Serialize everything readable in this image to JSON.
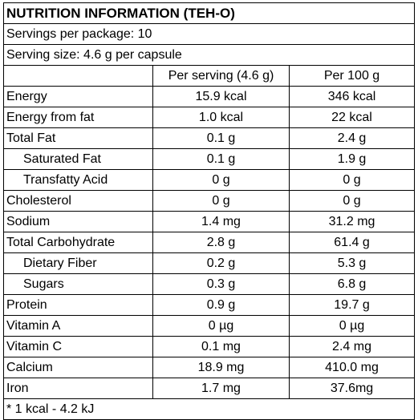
{
  "title": "NUTRITION INFORMATION (TEH-O)",
  "servings_per_package": "Servings per package: 10",
  "serving_size": "Serving size: 4.6 g per capsule",
  "headers": {
    "blank": "",
    "per_serving": "Per serving (4.6 g)",
    "per_100g": "Per 100 g"
  },
  "rows": [
    {
      "label": "Energy",
      "per_serving": "15.9 kcal",
      "per_100g": "346 kcal",
      "indent": false
    },
    {
      "label": "Energy from fat",
      "per_serving": "1.0 kcal",
      "per_100g": "22 kcal",
      "indent": false
    },
    {
      "label": "Total Fat",
      "per_serving": "0.1 g",
      "per_100g": "2.4 g",
      "indent": false
    },
    {
      "label": "Saturated Fat",
      "per_serving": "0.1 g",
      "per_100g": "1.9 g",
      "indent": true
    },
    {
      "label": "Transfatty Acid",
      "per_serving": "0 g",
      "per_100g": "0 g",
      "indent": true
    },
    {
      "label": "Cholesterol",
      "per_serving": "0 g",
      "per_100g": "0 g",
      "indent": false
    },
    {
      "label": "Sodium",
      "per_serving": "1.4 mg",
      "per_100g": "31.2 mg",
      "indent": false
    },
    {
      "label": "Total Carbohydrate",
      "per_serving": "2.8 g",
      "per_100g": "61.4 g",
      "indent": false
    },
    {
      "label": "Dietary Fiber",
      "per_serving": "0.2 g",
      "per_100g": "5.3 g",
      "indent": true
    },
    {
      "label": "Sugars",
      "per_serving": "0.3 g",
      "per_100g": "6.8 g",
      "indent": true
    },
    {
      "label": "Protein",
      "per_serving": "0.9 g",
      "per_100g": "19.7 g",
      "indent": false
    },
    {
      "label": "Vitamin A",
      "per_serving": "0 µg",
      "per_100g": "0 µg",
      "indent": false
    },
    {
      "label": "Vitamin C",
      "per_serving": "0.1 mg",
      "per_100g": "2.4 mg",
      "indent": false
    },
    {
      "label": "Calcium",
      "per_serving": "18.9 mg",
      "per_100g": "410.0 mg",
      "indent": false
    },
    {
      "label": "Iron",
      "per_serving": "1.7 mg",
      "per_100g": "37.6mg",
      "indent": false
    }
  ],
  "footnote": "* 1 kcal - 4.2 kJ"
}
